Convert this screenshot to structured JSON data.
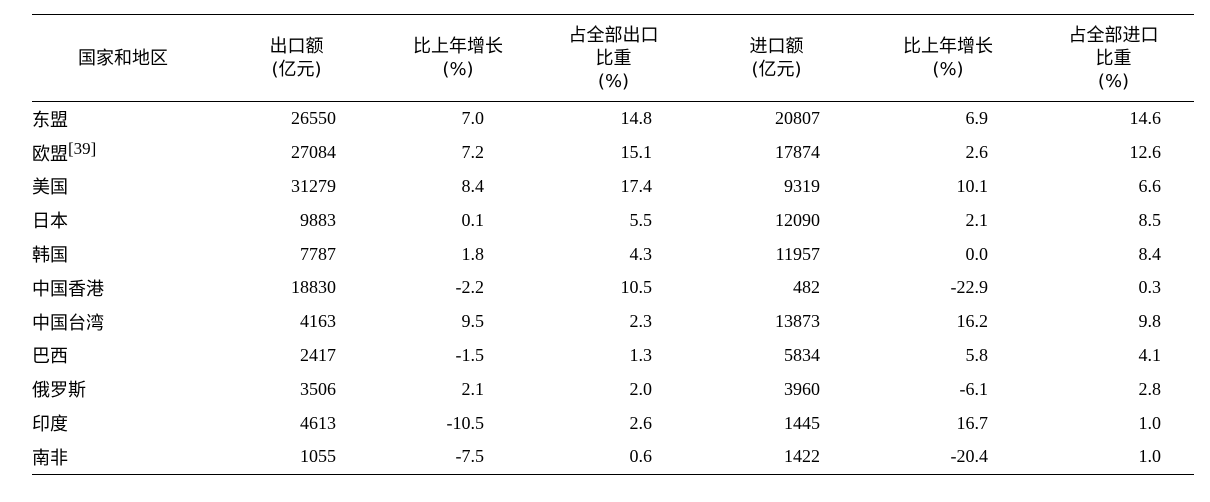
{
  "table": {
    "headers": [
      [
        "国家和地区"
      ],
      [
        "出口额",
        "(亿元)"
      ],
      [
        "比上年增长",
        "(%)"
      ],
      [
        "占全部出口",
        "比重",
        "(%)"
      ],
      [
        "进口额",
        "(亿元)"
      ],
      [
        "比上年增长",
        "(%)"
      ],
      [
        "占全部进口",
        "比重",
        "(%)"
      ]
    ],
    "rows": [
      {
        "name": "东盟",
        "note": "",
        "values": [
          "26550",
          "7.0",
          "14.8",
          "20807",
          "6.9",
          "14.6"
        ]
      },
      {
        "name": "欧盟",
        "note": "[39]",
        "values": [
          "27084",
          "7.2",
          "15.1",
          "17874",
          "2.6",
          "12.6"
        ]
      },
      {
        "name": "美国",
        "note": "",
        "values": [
          "31279",
          "8.4",
          "17.4",
          "9319",
          "10.1",
          "6.6"
        ]
      },
      {
        "name": "日本",
        "note": "",
        "values": [
          "9883",
          "0.1",
          "5.5",
          "12090",
          "2.1",
          "8.5"
        ]
      },
      {
        "name": "韩国",
        "note": "",
        "values": [
          "7787",
          "1.8",
          "4.3",
          "11957",
          "0.0",
          "8.4"
        ]
      },
      {
        "name": "中国香港",
        "note": "",
        "values": [
          "18830",
          "-2.2",
          "10.5",
          "482",
          "-22.9",
          "0.3"
        ]
      },
      {
        "name": "中国台湾",
        "note": "",
        "values": [
          "4163",
          "9.5",
          "2.3",
          "13873",
          "16.2",
          "9.8"
        ]
      },
      {
        "name": "巴西",
        "note": "",
        "values": [
          "2417",
          "-1.5",
          "1.3",
          "5834",
          "5.8",
          "4.1"
        ]
      },
      {
        "name": "俄罗斯",
        "note": "",
        "values": [
          "3506",
          "2.1",
          "2.0",
          "3960",
          "-6.1",
          "2.8"
        ]
      },
      {
        "name": "印度",
        "note": "",
        "values": [
          "4613",
          "-10.5",
          "2.6",
          "1445",
          "16.7",
          "1.0"
        ]
      },
      {
        "name": "南非",
        "note": "",
        "values": [
          "1055",
          "-7.5",
          "0.6",
          "1422",
          "-20.4",
          "1.0"
        ]
      }
    ]
  }
}
